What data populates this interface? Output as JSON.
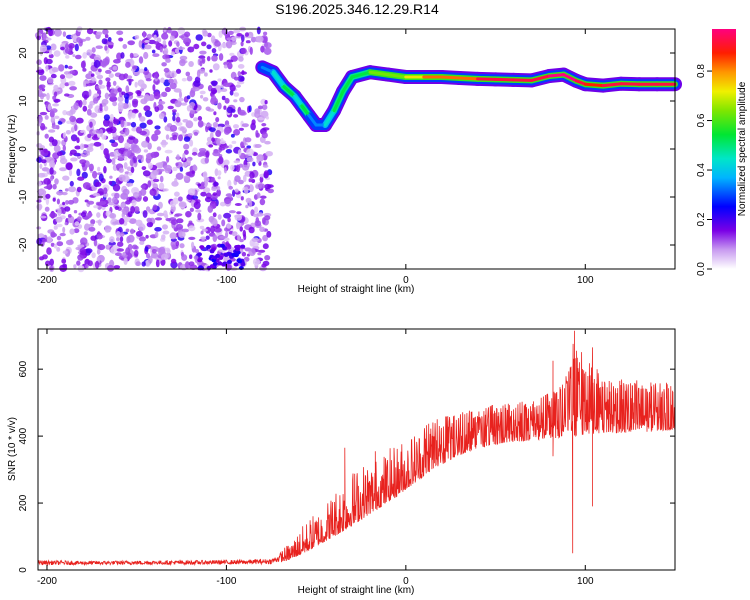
{
  "chart_data": [
    {
      "type": "heatmap",
      "title": "S196.2025.346.12.29.R14",
      "xlabel": "Height of straight line (km)",
      "ylabel": "Frequency (Hz)",
      "xlim": [
        -205,
        150
      ],
      "ylim": [
        -25,
        25
      ],
      "xticks": [
        -200,
        -100,
        0,
        100
      ],
      "yticks": [
        -20,
        -10,
        0,
        10,
        20
      ],
      "colorbar": {
        "label": "Normalized spectral amplitude",
        "range": [
          0,
          0.97
        ],
        "ticks": [
          0.0,
          0.2,
          0.4,
          0.6,
          0.8
        ],
        "colormap": "rainbow (white-violet-blue-cyan-green-yellow-red-magenta)"
      },
      "main_trace": {
        "name": "",
        "x": [
          -80,
          -74,
          -68,
          -62,
          -58,
          -54,
          -50,
          -45,
          -40,
          -35,
          -30,
          -20,
          -10,
          0,
          10,
          20,
          30,
          40,
          50,
          60,
          70,
          80,
          88,
          95,
          100,
          110,
          120,
          130,
          140,
          150
        ],
        "frequency_hz": [
          17,
          16,
          13,
          11,
          9,
          7,
          5,
          5,
          8,
          12,
          15,
          16,
          15.5,
          15,
          15,
          15,
          14.8,
          14.6,
          14.5,
          14.4,
          14.3,
          15.2,
          15.5,
          14.2,
          13.5,
          13.2,
          13.6,
          13.5,
          13.5,
          13.5
        ],
        "amplitude": [
          0.3,
          0.4,
          0.5,
          0.4,
          0.5,
          0.3,
          0.3,
          0.4,
          0.5,
          0.5,
          0.5,
          0.6,
          0.6,
          0.7,
          0.8,
          0.8,
          0.8,
          0.9,
          0.9,
          0.9,
          0.9,
          0.95,
          0.95,
          0.9,
          0.85,
          0.9,
          0.9,
          0.9,
          0.9,
          0.9
        ]
      }
    },
    {
      "type": "line",
      "title": "",
      "xlabel": "Height of straight line (km)",
      "ylabel": "SNR (10 * v/v)",
      "xlim": [
        -205,
        150
      ],
      "ylim": [
        0,
        720
      ],
      "xticks": [
        -200,
        -100,
        0,
        100
      ],
      "yticks": [
        0,
        200,
        400,
        600
      ],
      "series": [
        {
          "name": "",
          "color": "#e8221e",
          "x": [
            -205,
            -180,
            -150,
            -120,
            -90,
            -75,
            -65,
            -55,
            -45,
            -35,
            -25,
            -15,
            -5,
            5,
            15,
            25,
            35,
            45,
            55,
            65,
            75,
            85,
            90,
            94,
            100,
            110,
            120,
            130,
            140,
            150
          ],
          "baseline": [
            15,
            15,
            16,
            16,
            17,
            18,
            30,
            55,
            85,
            115,
            150,
            185,
            220,
            260,
            300,
            330,
            355,
            370,
            380,
            385,
            390,
            395,
            400,
            400,
            405,
            410,
            410,
            410,
            415,
            420
          ],
          "peak": [
            35,
            32,
            33,
            34,
            36,
            40,
            80,
            150,
            200,
            280,
            320,
            340,
            380,
            420,
            450,
            470,
            480,
            490,
            500,
            510,
            520,
            540,
            600,
            700,
            640,
            580,
            570,
            570,
            560,
            560
          ]
        }
      ],
      "spikes": [
        {
          "x": -34,
          "y": 365
        },
        {
          "x": -17,
          "y": 355
        },
        {
          "x": 82,
          "y": 625
        },
        {
          "x": 94,
          "y": 715
        },
        {
          "x": 104,
          "y": 665
        }
      ],
      "dips": [
        {
          "x": 93,
          "y": 50
        },
        {
          "x": 104,
          "y": 190
        },
        {
          "x": 82,
          "y": 340
        }
      ]
    }
  ]
}
